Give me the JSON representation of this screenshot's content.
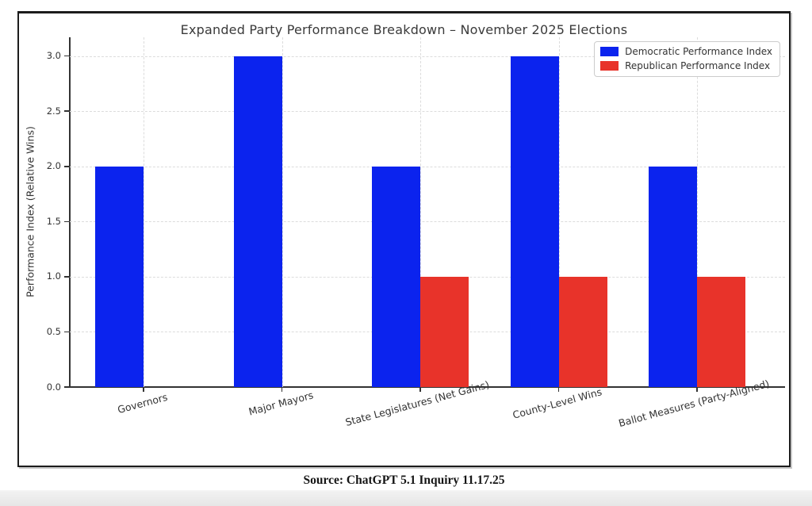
{
  "chart_data": {
    "type": "bar",
    "title": "Expanded Party Performance Breakdown – November 2025 Elections",
    "categories": [
      "Governors",
      "Major Mayors",
      "State Legislatures (Net Gains)",
      "County-Level Wins",
      "Ballot Measures (Party-Aligned)"
    ],
    "series": [
      {
        "name": "Democratic Performance Index",
        "color": "#0b23ee",
        "values": [
          2,
          3,
          2,
          3,
          2
        ]
      },
      {
        "name": "Republican Performance Index",
        "color": "#e8332a",
        "values": [
          0,
          0,
          1,
          1,
          1
        ]
      }
    ],
    "xlabel": "",
    "ylabel": "Performance Index (Relative Wins)",
    "yticks": [
      0.0,
      0.5,
      1.0,
      1.5,
      2.0,
      2.5,
      3.0
    ],
    "ytick_labels": [
      "0.0",
      "0.5",
      "1.0",
      "1.5",
      "2.0",
      "2.5",
      "3.0"
    ],
    "ylim": [
      0,
      3.17
    ],
    "grid": "dashed",
    "legend_position": "upper right"
  },
  "source_note": "Source: ChatGPT 5.1 Inquiry 11.17.25",
  "colors": {
    "democratic": "#0b23ee",
    "republican": "#e8332a",
    "grid": "#dcdcdc",
    "spine": "#333333",
    "text": "#333333",
    "frame_border": "#1c1c1c"
  }
}
